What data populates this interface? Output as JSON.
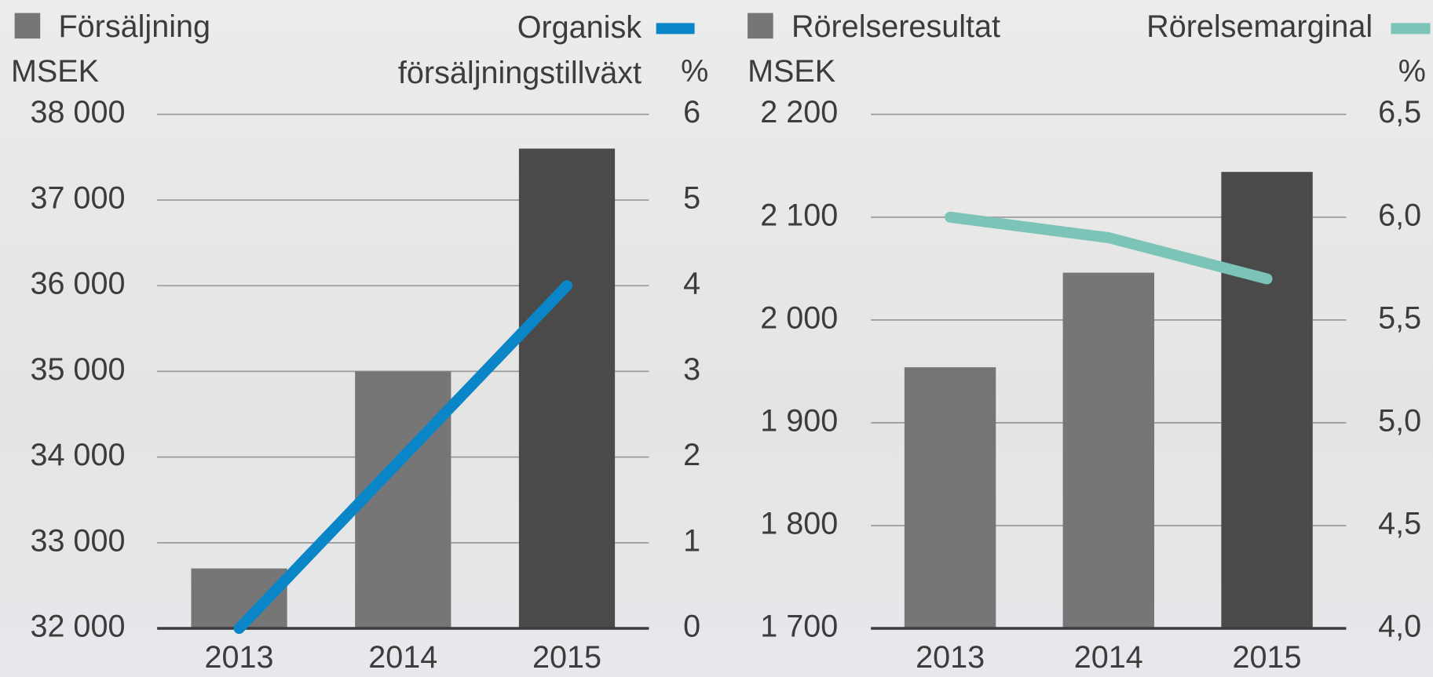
{
  "chart_data": [
    {
      "type": "bar-line",
      "y_label": "MSEK",
      "y2_label": "%",
      "categories": [
        "2013",
        "2014",
        "2015"
      ],
      "series": [
        {
          "name": "Försäljning",
          "color": "#767676",
          "colors": [
            "#767676",
            "#767676",
            "#4a4a4a"
          ],
          "values": [
            32700,
            35000,
            37600
          ]
        },
        {
          "name": "Organisk försäljningstillväxt",
          "color": "#0a86c8",
          "axis": "y2",
          "values": [
            0,
            2,
            4
          ]
        }
      ],
      "ylim": [
        32000,
        38000
      ],
      "yticks": [
        {
          "value": 32000,
          "label": "32 000"
        },
        {
          "value": 33000,
          "label": "33 000"
        },
        {
          "value": 34000,
          "label": "34 000"
        },
        {
          "value": 35000,
          "label": "35 000"
        },
        {
          "value": 36000,
          "label": "36 000"
        },
        {
          "value": 37000,
          "label": "37 000"
        },
        {
          "value": 38000,
          "label": "38 000"
        }
      ],
      "y2lim": [
        0,
        6
      ],
      "y2ticks": [
        0,
        1,
        2,
        3,
        4,
        5,
        6
      ],
      "grid": true
    },
    {
      "type": "bar-line",
      "y_label": "MSEK",
      "y2_label": "%",
      "categories": [
        "2013",
        "2014",
        "2015"
      ],
      "series": [
        {
          "name": "Rörelseresultat",
          "color": "#767676",
          "colors": [
            "#767676",
            "#767676",
            "#4a4a4a"
          ],
          "values": [
            1954,
            2046,
            2144
          ]
        },
        {
          "name": "Rörelsemarginal",
          "color": "#7cc4b8",
          "axis": "y2",
          "values": [
            6.0,
            5.9,
            5.7
          ]
        }
      ],
      "ylim": [
        1700,
        2200
      ],
      "yticks": [
        {
          "value": 1700,
          "label": "1 700"
        },
        {
          "value": 1800,
          "label": "1 800"
        },
        {
          "value": 1900,
          "label": "1 900"
        },
        {
          "value": 2000,
          "label": "2 000"
        },
        {
          "value": 2100,
          "label": "2 100"
        },
        {
          "value": 2200,
          "label": "2 200"
        }
      ],
      "y2lim": [
        4.0,
        6.5
      ],
      "y2ticks": [
        {
          "value": 4.0,
          "label": "4,0"
        },
        {
          "value": 4.5,
          "label": "4,5"
        },
        {
          "value": 5.0,
          "label": "5,0"
        },
        {
          "value": 5.5,
          "label": "5,5"
        },
        {
          "value": 6.0,
          "label": "6,0"
        },
        {
          "value": 6.5,
          "label": "6,5"
        }
      ],
      "grid": true
    }
  ]
}
